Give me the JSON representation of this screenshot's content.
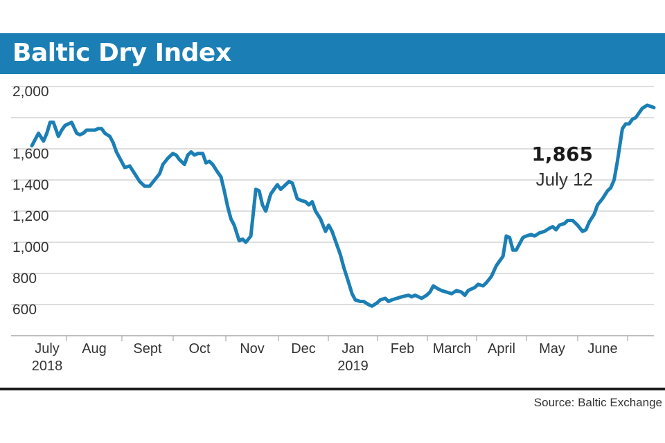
{
  "title": "Baltic Dry Index",
  "source": "Source: Baltic Exchange",
  "colors": {
    "accent": "#1b7fb5",
    "line": "#1b7fb5",
    "grid": "#bbbbbb",
    "text": "#333333"
  },
  "chart_data": {
    "type": "line",
    "title": "Baltic Dry Index",
    "xlabel": "",
    "ylabel": "",
    "ylim": [
      400,
      2000
    ],
    "yticks": [
      2000,
      1600,
      1400,
      1200,
      1000,
      800,
      600
    ],
    "ytick_labels": [
      "2,000",
      "1,600",
      "1,400",
      "1,200",
      "1,000",
      "800",
      "600"
    ],
    "grid": true,
    "month_ticks": [
      {
        "label": "July",
        "sub": "2018"
      },
      {
        "label": "Aug",
        "sub": ""
      },
      {
        "label": "Sept",
        "sub": ""
      },
      {
        "label": "Oct",
        "sub": ""
      },
      {
        "label": "Nov",
        "sub": ""
      },
      {
        "label": "Dec",
        "sub": ""
      },
      {
        "label": "Jan",
        "sub": "2019"
      },
      {
        "label": "Feb",
        "sub": ""
      },
      {
        "label": "March",
        "sub": ""
      },
      {
        "label": "April",
        "sub": ""
      },
      {
        "label": "May",
        "sub": ""
      },
      {
        "label": "June",
        "sub": ""
      }
    ],
    "x_start": "2018-07-02",
    "x_end": "2019-07-12",
    "series": [
      {
        "values": [
          [
            "2018-07-02",
            1620
          ],
          [
            "2018-07-04",
            1660
          ],
          [
            "2018-07-06",
            1700
          ],
          [
            "2018-07-09",
            1650
          ],
          [
            "2018-07-11",
            1700
          ],
          [
            "2018-07-13",
            1770
          ],
          [
            "2018-07-15",
            1770
          ],
          [
            "2018-07-18",
            1680
          ],
          [
            "2018-07-20",
            1720
          ],
          [
            "2018-07-22",
            1750
          ],
          [
            "2018-07-24",
            1760
          ],
          [
            "2018-07-26",
            1770
          ],
          [
            "2018-07-29",
            1700
          ],
          [
            "2018-07-31",
            1690
          ],
          [
            "2018-08-02",
            1700
          ],
          [
            "2018-08-04",
            1720
          ],
          [
            "2018-08-07",
            1720
          ],
          [
            "2018-08-09",
            1720
          ],
          [
            "2018-08-11",
            1730
          ],
          [
            "2018-08-13",
            1730
          ],
          [
            "2018-08-15",
            1700
          ],
          [
            "2018-08-18",
            1680
          ],
          [
            "2018-08-20",
            1640
          ],
          [
            "2018-08-22",
            1580
          ],
          [
            "2018-08-24",
            1540
          ],
          [
            "2018-08-27",
            1480
          ],
          [
            "2018-08-30",
            1490
          ],
          [
            "2018-09-02",
            1440
          ],
          [
            "2018-09-05",
            1390
          ],
          [
            "2018-09-08",
            1360
          ],
          [
            "2018-09-11",
            1360
          ],
          [
            "2018-09-14",
            1400
          ],
          [
            "2018-09-17",
            1440
          ],
          [
            "2018-09-19",
            1500
          ],
          [
            "2018-09-22",
            1540
          ],
          [
            "2018-09-25",
            1570
          ],
          [
            "2018-09-27",
            1560
          ],
          [
            "2018-09-29",
            1530
          ],
          [
            "2018-10-02",
            1500
          ],
          [
            "2018-10-04",
            1560
          ],
          [
            "2018-10-06",
            1580
          ],
          [
            "2018-10-08",
            1560
          ],
          [
            "2018-10-10",
            1570
          ],
          [
            "2018-10-13",
            1570
          ],
          [
            "2018-10-15",
            1510
          ],
          [
            "2018-10-17",
            1520
          ],
          [
            "2018-10-19",
            1500
          ],
          [
            "2018-10-22",
            1450
          ],
          [
            "2018-10-24",
            1420
          ],
          [
            "2018-10-26",
            1330
          ],
          [
            "2018-10-28",
            1230
          ],
          [
            "2018-10-30",
            1150
          ],
          [
            "2018-11-01",
            1110
          ],
          [
            "2018-11-04",
            1010
          ],
          [
            "2018-11-06",
            1020
          ],
          [
            "2018-11-08",
            1000
          ],
          [
            "2018-11-11",
            1040
          ],
          [
            "2018-11-14",
            1340
          ],
          [
            "2018-11-16",
            1330
          ],
          [
            "2018-11-18",
            1240
          ],
          [
            "2018-11-20",
            1200
          ],
          [
            "2018-11-23",
            1310
          ],
          [
            "2018-11-25",
            1340
          ],
          [
            "2018-11-27",
            1370
          ],
          [
            "2018-11-29",
            1340
          ],
          [
            "2018-12-02",
            1370
          ],
          [
            "2018-12-04",
            1390
          ],
          [
            "2018-12-06",
            1380
          ],
          [
            "2018-12-09",
            1280
          ],
          [
            "2018-12-11",
            1270
          ],
          [
            "2018-12-14",
            1260
          ],
          [
            "2018-12-16",
            1240
          ],
          [
            "2018-12-18",
            1260
          ],
          [
            "2018-12-20",
            1200
          ],
          [
            "2018-12-23",
            1150
          ],
          [
            "2018-12-26",
            1070
          ],
          [
            "2018-12-28",
            1110
          ],
          [
            "2018-12-30",
            1070
          ],
          [
            "2019-01-02",
            980
          ],
          [
            "2019-01-04",
            920
          ],
          [
            "2019-01-06",
            840
          ],
          [
            "2019-01-09",
            740
          ],
          [
            "2019-01-11",
            670
          ],
          [
            "2019-01-13",
            630
          ],
          [
            "2019-01-16",
            620
          ],
          [
            "2019-01-18",
            620
          ],
          [
            "2019-01-21",
            600
          ],
          [
            "2019-01-23",
            590
          ],
          [
            "2019-01-26",
            610
          ],
          [
            "2019-01-28",
            630
          ],
          [
            "2019-01-31",
            640
          ],
          [
            "2019-02-02",
            620
          ],
          [
            "2019-02-04",
            630
          ],
          [
            "2019-02-07",
            640
          ],
          [
            "2019-02-10",
            650
          ],
          [
            "2019-02-14",
            660
          ],
          [
            "2019-02-16",
            650
          ],
          [
            "2019-02-18",
            660
          ],
          [
            "2019-02-20",
            650
          ],
          [
            "2019-02-22",
            640
          ],
          [
            "2019-02-25",
            660
          ],
          [
            "2019-02-27",
            680
          ],
          [
            "2019-03-01",
            720
          ],
          [
            "2019-03-04",
            700
          ],
          [
            "2019-03-06",
            690
          ],
          [
            "2019-03-09",
            680
          ],
          [
            "2019-03-12",
            670
          ],
          [
            "2019-03-15",
            690
          ],
          [
            "2019-03-18",
            680
          ],
          [
            "2019-03-20",
            660
          ],
          [
            "2019-03-22",
            690
          ],
          [
            "2019-03-24",
            700
          ],
          [
            "2019-03-26",
            710
          ],
          [
            "2019-03-28",
            730
          ],
          [
            "2019-03-31",
            720
          ],
          [
            "2019-04-02",
            740
          ],
          [
            "2019-04-05",
            780
          ],
          [
            "2019-04-08",
            850
          ],
          [
            "2019-04-10",
            880
          ],
          [
            "2019-04-12",
            910
          ],
          [
            "2019-04-14",
            1040
          ],
          [
            "2019-04-16",
            1030
          ],
          [
            "2019-04-18",
            950
          ],
          [
            "2019-04-20",
            950
          ],
          [
            "2019-04-22",
            990
          ],
          [
            "2019-04-24",
            1030
          ],
          [
            "2019-04-26",
            1040
          ],
          [
            "2019-04-29",
            1050
          ],
          [
            "2019-05-01",
            1040
          ],
          [
            "2019-05-04",
            1060
          ],
          [
            "2019-05-07",
            1070
          ],
          [
            "2019-05-10",
            1090
          ],
          [
            "2019-05-12",
            1100
          ],
          [
            "2019-05-14",
            1080
          ],
          [
            "2019-05-16",
            1110
          ],
          [
            "2019-05-19",
            1120
          ],
          [
            "2019-05-21",
            1140
          ],
          [
            "2019-05-24",
            1140
          ],
          [
            "2019-05-27",
            1110
          ],
          [
            "2019-05-30",
            1070
          ],
          [
            "2019-06-01",
            1080
          ],
          [
            "2019-06-03",
            1130
          ],
          [
            "2019-06-06",
            1180
          ],
          [
            "2019-06-08",
            1240
          ],
          [
            "2019-06-11",
            1280
          ],
          [
            "2019-06-14",
            1330
          ],
          [
            "2019-06-16",
            1350
          ],
          [
            "2019-06-18",
            1400
          ],
          [
            "2019-06-20",
            1520
          ],
          [
            "2019-06-23",
            1730
          ],
          [
            "2019-06-25",
            1760
          ],
          [
            "2019-06-27",
            1760
          ],
          [
            "2019-06-29",
            1790
          ],
          [
            "2019-07-01",
            1800
          ],
          [
            "2019-07-03",
            1830
          ],
          [
            "2019-07-05",
            1860
          ],
          [
            "2019-07-08",
            1880
          ],
          [
            "2019-07-12",
            1865
          ]
        ]
      }
    ],
    "annotations": [
      {
        "value": "1,865",
        "date": "July 12"
      }
    ]
  }
}
